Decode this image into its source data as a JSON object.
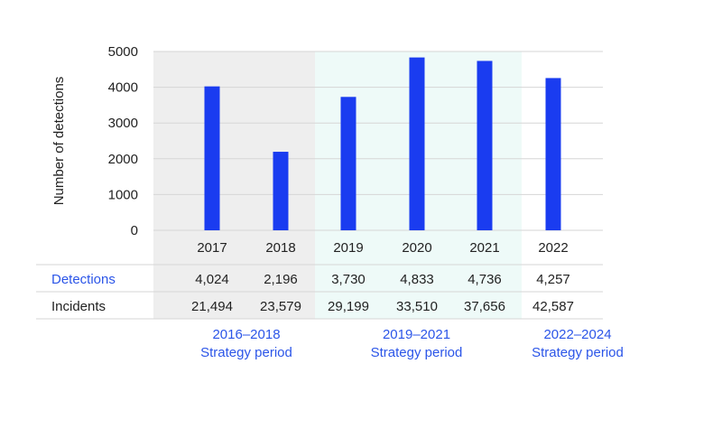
{
  "colors": {
    "bar": "#1a3cf0",
    "accent_text": "#2b55e8",
    "period1_bg": "#eeeeee",
    "period2_bg": "#eefaf8",
    "grid": "#d6d6d6",
    "text": "#222222"
  },
  "chart_data": {
    "type": "bar",
    "ylabel": "Number of detections",
    "ylim": [
      0,
      5000
    ],
    "yticks": [
      0,
      1000,
      2000,
      3000,
      4000,
      5000
    ],
    "grid": true,
    "categories": [
      "2017",
      "2018",
      "2019",
      "2020",
      "2021",
      "2022"
    ],
    "series": [
      {
        "name": "Detections",
        "values": [
          4024,
          2196,
          3730,
          4833,
          4736,
          4257
        ]
      }
    ],
    "table": {
      "rows": [
        {
          "label": "Detections",
          "values": [
            "4,024",
            "2,196",
            "3,730",
            "4,833",
            "4,736",
            "4,257"
          ]
        },
        {
          "label": "Incidents",
          "values": [
            "21,494",
            "23,579",
            "29,199",
            "33,510",
            "37,656",
            "42,587"
          ]
        }
      ]
    },
    "periods": [
      {
        "line1": "2016–2018",
        "line2": "Strategy period",
        "from": 0,
        "to": 1
      },
      {
        "line1": "2019–2021",
        "line2": "Strategy period",
        "from": 2,
        "to": 4
      },
      {
        "line1": "2022–2024",
        "line2": "Strategy period",
        "from": 5,
        "to": 5
      }
    ]
  }
}
